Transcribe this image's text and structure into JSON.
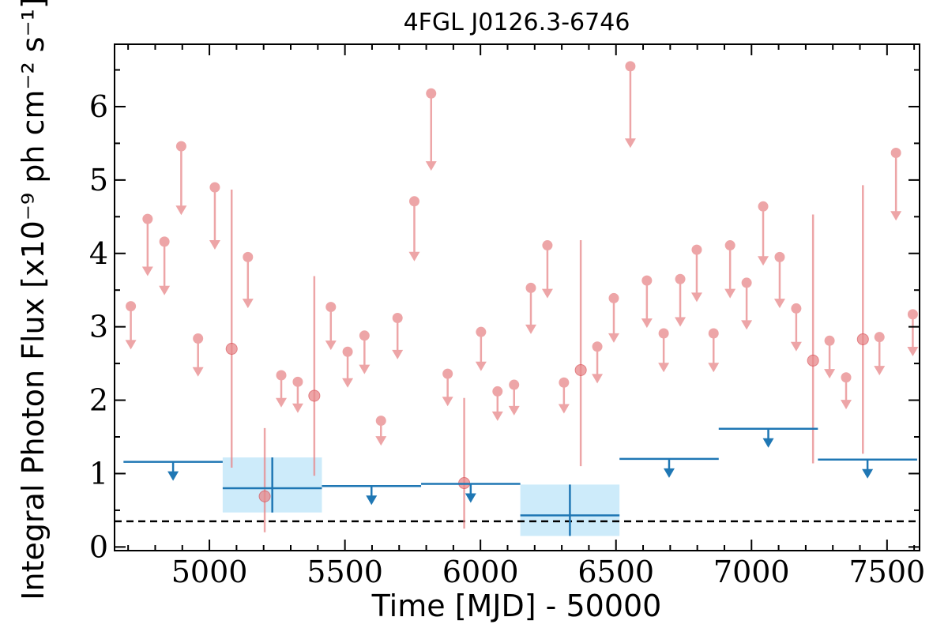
{
  "chart_data": {
    "type": "scatter",
    "title": "4FGL J0126.3-6746",
    "xlabel": "Time [MJD] - 50000",
    "ylabel": "Integral Photon Flux [x10⁻⁹ ph cm⁻² s⁻¹]",
    "xlim": [
      4650,
      7620
    ],
    "ylim": [
      -0.05,
      6.85
    ],
    "x_ticks": [
      5000,
      5500,
      6000,
      6500,
      7000,
      7500
    ],
    "y_ticks": [
      0,
      1,
      2,
      3,
      4,
      5,
      6
    ],
    "grid": false,
    "colors": {
      "short_bin": "#e8888a",
      "long_bin": "#1f77b4",
      "band": "#cdebfa",
      "baseline": "#000000"
    },
    "series": [
      {
        "bin": "short",
        "upper_limits": [
          {
            "x": 4710,
            "y": 3.28
          },
          {
            "x": 4772,
            "y": 4.47
          },
          {
            "x": 4834,
            "y": 4.16
          },
          {
            "x": 4896,
            "y": 5.46
          },
          {
            "x": 4958,
            "y": 2.84
          },
          {
            "x": 5020,
            "y": 4.9
          },
          {
            "x": 5142,
            "y": 3.95
          },
          {
            "x": 5265,
            "y": 2.34
          },
          {
            "x": 5326,
            "y": 2.25
          },
          {
            "x": 5448,
            "y": 3.27
          },
          {
            "x": 5510,
            "y": 2.66
          },
          {
            "x": 5572,
            "y": 2.88
          },
          {
            "x": 5633,
            "y": 1.72
          },
          {
            "x": 5694,
            "y": 3.12
          },
          {
            "x": 5756,
            "y": 4.71
          },
          {
            "x": 5818,
            "y": 6.18
          },
          {
            "x": 5879,
            "y": 2.36
          },
          {
            "x": 6002,
            "y": 2.93
          },
          {
            "x": 6063,
            "y": 2.12
          },
          {
            "x": 6124,
            "y": 2.21
          },
          {
            "x": 6186,
            "y": 3.53
          },
          {
            "x": 6247,
            "y": 4.11
          },
          {
            "x": 6308,
            "y": 2.24
          },
          {
            "x": 6431,
            "y": 2.73
          },
          {
            "x": 6492,
            "y": 3.39
          },
          {
            "x": 6553,
            "y": 6.55
          },
          {
            "x": 6614,
            "y": 3.63
          },
          {
            "x": 6676,
            "y": 2.91
          },
          {
            "x": 6737,
            "y": 3.65
          },
          {
            "x": 6798,
            "y": 4.05
          },
          {
            "x": 6860,
            "y": 2.91
          },
          {
            "x": 6921,
            "y": 4.11
          },
          {
            "x": 6982,
            "y": 3.6
          },
          {
            "x": 7043,
            "y": 4.64
          },
          {
            "x": 7104,
            "y": 3.95
          },
          {
            "x": 7165,
            "y": 3.25
          },
          {
            "x": 7288,
            "y": 2.81
          },
          {
            "x": 7349,
            "y": 2.31
          },
          {
            "x": 7472,
            "y": 2.86
          },
          {
            "x": 7533,
            "y": 5.37
          },
          {
            "x": 7595,
            "y": 3.17
          }
        ],
        "detections": [
          {
            "x": 5082,
            "y": 2.7,
            "ylo": 1.08,
            "yhi": 4.87
          },
          {
            "x": 5204,
            "y": 0.69,
            "ylo": 0.2,
            "yhi": 1.62
          },
          {
            "x": 5387,
            "y": 2.06,
            "ylo": 0.97,
            "yhi": 3.69
          },
          {
            "x": 5940,
            "y": 0.87,
            "ylo": 0.25,
            "yhi": 2.03
          },
          {
            "x": 6370,
            "y": 2.41,
            "ylo": 1.1,
            "yhi": 4.18
          },
          {
            "x": 7227,
            "y": 2.54,
            "ylo": 1.14,
            "yhi": 4.53
          },
          {
            "x": 7411,
            "y": 2.83,
            "ylo": 1.27,
            "yhi": 4.93
          }
        ]
      },
      {
        "bin": "long",
        "upper_limits": [
          {
            "x0": 4683,
            "x1": 5049,
            "y": 1.16
          },
          {
            "x0": 5415,
            "x1": 5781,
            "y": 0.83
          },
          {
            "x0": 5781,
            "x1": 6147,
            "y": 0.86
          },
          {
            "x0": 6513,
            "x1": 6879,
            "y": 1.2
          },
          {
            "x0": 6879,
            "x1": 7245,
            "y": 1.61
          },
          {
            "x0": 7245,
            "x1": 7611,
            "y": 1.19
          }
        ],
        "detections": [
          {
            "x0": 5049,
            "x1": 5415,
            "y": 0.8,
            "ylo": 0.47,
            "yhi": 1.22
          },
          {
            "x0": 6147,
            "x1": 6513,
            "y": 0.43,
            "ylo": 0.15,
            "yhi": 0.85
          }
        ]
      }
    ],
    "baseline": 0.35
  }
}
